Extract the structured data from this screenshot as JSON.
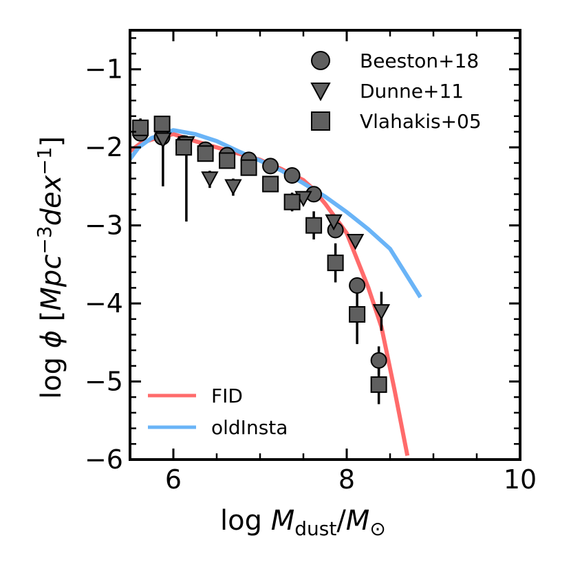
{
  "chart_data": {
    "type": "scatter",
    "xlabel": "log M_dust/M_⊙",
    "ylabel": "log φ [Mpc^-3 dex^-1]",
    "xlim": [
      5.5,
      10
    ],
    "ylim": [
      -6,
      -0.5
    ],
    "xticks": [
      6,
      8,
      10
    ],
    "yticks": [
      -1,
      -2,
      -3,
      -4,
      -5,
      -6
    ],
    "grid": false,
    "series": [
      {
        "name": "Beeston+18",
        "marker": "circle",
        "color": "#5f5f5f",
        "points": [
          {
            "x": 5.62,
            "y": -1.82,
            "err_lo": 0.08,
            "err_hi": 0.08
          },
          {
            "x": 5.87,
            "y": -1.87,
            "err_lo": 0.08,
            "err_hi": 0.08
          },
          {
            "x": 6.12,
            "y": -1.95,
            "err_lo": 0.06,
            "err_hi": 0.06
          },
          {
            "x": 6.37,
            "y": -2.03,
            "err_lo": 0.05,
            "err_hi": 0.05
          },
          {
            "x": 6.62,
            "y": -2.1,
            "err_lo": 0.05,
            "err_hi": 0.05
          },
          {
            "x": 6.87,
            "y": -2.16,
            "err_lo": 0.04,
            "err_hi": 0.04
          },
          {
            "x": 7.12,
            "y": -2.24,
            "err_lo": 0.04,
            "err_hi": 0.04
          },
          {
            "x": 7.37,
            "y": -2.36,
            "err_lo": 0.04,
            "err_hi": 0.04
          },
          {
            "x": 7.62,
            "y": -2.6,
            "err_lo": 0.04,
            "err_hi": 0.04
          },
          {
            "x": 7.87,
            "y": -3.06,
            "err_lo": 0.05,
            "err_hi": 0.05
          },
          {
            "x": 8.12,
            "y": -3.77,
            "err_lo": 0.08,
            "err_hi": 0.08
          },
          {
            "x": 8.37,
            "y": -4.73,
            "err_lo": 0.18,
            "err_hi": 0.18
          }
        ]
      },
      {
        "name": "Dunne+11",
        "marker": "triangle-down",
        "color": "#5f5f5f",
        "points": [
          {
            "x": 5.88,
            "y": -1.9,
            "err_lo": 0.6,
            "err_hi": 0.1
          },
          {
            "x": 6.15,
            "y": -1.95,
            "err_lo": 1.0,
            "err_hi": 0.1
          },
          {
            "x": 6.42,
            "y": -2.4,
            "err_lo": 0.12,
            "err_hi": 0.1
          },
          {
            "x": 6.69,
            "y": -2.5,
            "err_lo": 0.12,
            "err_hi": 0.1
          },
          {
            "x": 7.5,
            "y": -2.65,
            "err_lo": 0.08,
            "err_hi": 0.06
          },
          {
            "x": 7.85,
            "y": -2.95,
            "err_lo": 0.06,
            "err_hi": 0.05
          },
          {
            "x": 8.1,
            "y": -3.2,
            "err_lo": 0.06,
            "err_hi": 0.06
          },
          {
            "x": 8.4,
            "y": -4.1,
            "err_lo": 0.25,
            "err_hi": 0.25
          }
        ]
      },
      {
        "name": "Vlahakis+05",
        "marker": "square",
        "color": "#5f5f5f",
        "points": [
          {
            "x": 5.62,
            "y": -1.75,
            "err_lo": 0.12,
            "err_hi": 0.12
          },
          {
            "x": 5.87,
            "y": -1.7,
            "err_lo": 0.1,
            "err_hi": 0.1
          },
          {
            "x": 6.12,
            "y": -2.0,
            "err_lo": 0.1,
            "err_hi": 0.1
          },
          {
            "x": 6.37,
            "y": -2.08,
            "err_lo": 0.1,
            "err_hi": 0.1
          },
          {
            "x": 6.62,
            "y": -2.17,
            "err_lo": 0.08,
            "err_hi": 0.08
          },
          {
            "x": 6.87,
            "y": -2.26,
            "err_lo": 0.08,
            "err_hi": 0.08
          },
          {
            "x": 7.12,
            "y": -2.47,
            "err_lo": 0.1,
            "err_hi": 0.1
          },
          {
            "x": 7.37,
            "y": -2.7,
            "err_lo": 0.12,
            "err_hi": 0.12
          },
          {
            "x": 7.62,
            "y": -3.0,
            "err_lo": 0.18,
            "err_hi": 0.18
          },
          {
            "x": 7.87,
            "y": -3.48,
            "err_lo": 0.25,
            "err_hi": 0.25
          },
          {
            "x": 8.12,
            "y": -4.14,
            "err_lo": 0.38,
            "err_hi": 0.38
          },
          {
            "x": 8.37,
            "y": -5.04,
            "err_lo": 0.25,
            "err_hi": 0.25
          }
        ]
      },
      {
        "name": "FID",
        "marker": "line",
        "color": "#ff6b6b",
        "x": [
          5.5,
          5.62,
          5.75,
          6.0,
          6.25,
          6.5,
          6.75,
          7.0,
          7.25,
          7.5,
          7.6,
          7.75,
          8.0,
          8.25,
          8.4,
          8.55,
          8.7
        ],
        "y": [
          -2.05,
          -1.95,
          -1.9,
          -1.83,
          -1.92,
          -2.0,
          -2.08,
          -2.16,
          -2.28,
          -2.42,
          -2.52,
          -2.72,
          -3.1,
          -3.8,
          -4.3,
          -5.1,
          -5.95
        ]
      },
      {
        "name": "oldInsta",
        "marker": "line",
        "color": "#6ab4f7",
        "x": [
          5.5,
          5.6,
          5.75,
          6.0,
          6.25,
          6.5,
          6.75,
          7.0,
          7.25,
          7.5,
          7.75,
          8.0,
          8.25,
          8.5,
          8.85
        ],
        "y": [
          -2.15,
          -2.0,
          -1.88,
          -1.78,
          -1.83,
          -1.92,
          -2.05,
          -2.17,
          -2.3,
          -2.46,
          -2.63,
          -2.83,
          -3.05,
          -3.3,
          -3.92
        ]
      }
    ],
    "legends": {
      "upper_right": [
        "Beeston+18",
        "Dunne+11",
        "Vlahakis+05"
      ],
      "lower_left": [
        "FID",
        "oldInsta"
      ]
    }
  }
}
